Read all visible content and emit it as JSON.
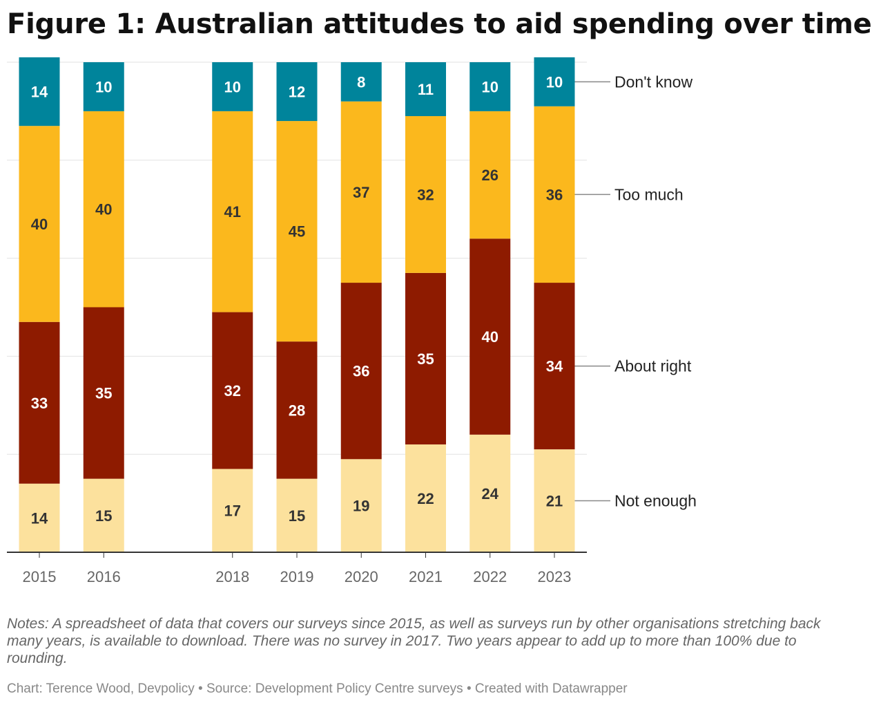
{
  "title": "Figure 1: Australian attitudes to aid spending over time",
  "notes": "Notes: A spreadsheet of data that covers our surveys since 2015, as well as surveys run by other organisations stretching back many years, is available to download. There was no survey in 2017. Two years appear to add up to more than 100% due to rounding.",
  "credit": "Chart: Terence Wood, Devpolicy • Source: Development Policy Centre surveys • Created with Datawrapper",
  "chart_data": {
    "type": "bar",
    "stacked": true,
    "categories": [
      "2015",
      "2016",
      "2018",
      "2019",
      "2020",
      "2021",
      "2022",
      "2023"
    ],
    "ylim": [
      0,
      100
    ],
    "grid": true,
    "legend": "right (inline labels beside last bar)",
    "series": [
      {
        "name": "Not enough",
        "color": "#fce19d",
        "label_color": "#333333",
        "values": [
          14,
          15,
          17,
          15,
          19,
          22,
          24,
          21
        ]
      },
      {
        "name": "About right",
        "color": "#8e1b00",
        "label_color": "#ffffff",
        "values": [
          33,
          35,
          32,
          28,
          36,
          35,
          40,
          34
        ]
      },
      {
        "name": "Too much",
        "color": "#fbb81d",
        "label_color": "#333333",
        "values": [
          40,
          40,
          41,
          45,
          37,
          32,
          26,
          36
        ]
      },
      {
        "name": "Don't know",
        "color": "#00849b",
        "label_color": "#ffffff",
        "values": [
          14,
          10,
          10,
          12,
          8,
          11,
          10,
          10
        ]
      }
    ]
  }
}
